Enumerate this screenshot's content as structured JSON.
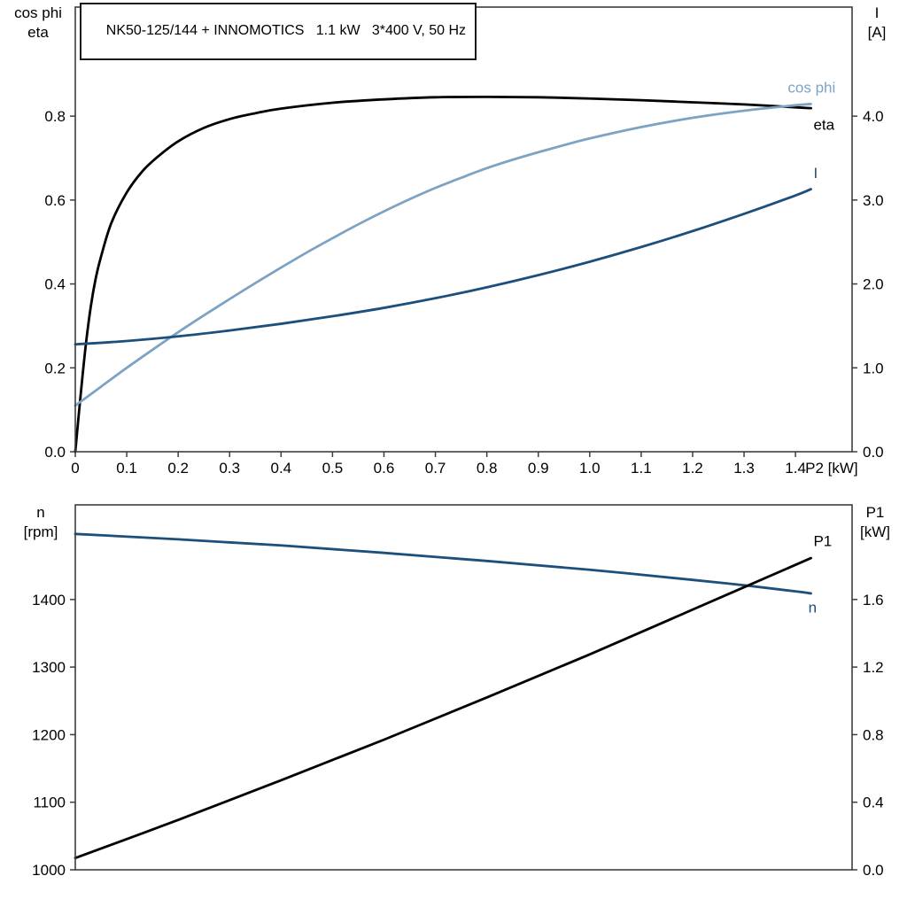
{
  "colors": {
    "eta_curve": "#000000",
    "cos_phi_curve": "#7da3c4",
    "current_curve": "#1c4f7c",
    "speed_curve": "#1c4f7c",
    "p1_curve": "#000000",
    "frame": "#3d3d3d",
    "text": "#000000",
    "background": "#ffffff"
  },
  "chart_data": [
    {
      "id": "top",
      "type": "line",
      "title": "NK50-125/144 + INNOMOTICS   1.1 kW   3*400 V, 50 Hz",
      "grid": false,
      "legend_position": "curve-end-labels",
      "x_axis": {
        "unit_label": "P2 [kW]",
        "range": [
          0,
          1.51
        ],
        "ticks": [
          0,
          0.1,
          0.2,
          0.3,
          0.4,
          0.5,
          0.6,
          0.7,
          0.8,
          0.9,
          1.0,
          1.1,
          1.2,
          1.3,
          1.4
        ],
        "tick_labels": [
          "0",
          "0.1",
          "0.2",
          "0.3",
          "0.4",
          "0.5",
          "0.6",
          "0.7",
          "0.8",
          "0.9",
          "1.0",
          "1.1",
          "1.2",
          "1.3",
          "1.4"
        ]
      },
      "left_axis": {
        "label_lines": [
          "cos phi",
          "eta"
        ],
        "range": [
          0,
          1.06
        ],
        "ticks": [
          0,
          0.2,
          0.4,
          0.6,
          0.8
        ],
        "tick_labels": [
          "0.0",
          "0.2",
          "0.4",
          "0.6",
          "0.8"
        ]
      },
      "right_axis": {
        "label_lines": [
          "I",
          "[A]"
        ],
        "range": [
          0,
          5.3
        ],
        "ticks": [
          0,
          1,
          2,
          3,
          4
        ],
        "tick_labels": [
          "0.0",
          "1.0",
          "2.0",
          "3.0",
          "4.0"
        ]
      },
      "series": [
        {
          "key": "eta",
          "name": "eta",
          "axis": "left",
          "color_key": "eta_curve",
          "label": "eta",
          "label_pos": [
            1.435,
            0.768
          ],
          "points": [
            [
              0,
              0
            ],
            [
              0.01,
              0.13
            ],
            [
              0.02,
              0.25
            ],
            [
              0.03,
              0.345
            ],
            [
              0.04,
              0.415
            ],
            [
              0.05,
              0.465
            ],
            [
              0.07,
              0.545
            ],
            [
              0.1,
              0.618
            ],
            [
              0.13,
              0.668
            ],
            [
              0.16,
              0.703
            ],
            [
              0.2,
              0.74
            ],
            [
              0.25,
              0.772
            ],
            [
              0.3,
              0.793
            ],
            [
              0.35,
              0.807
            ],
            [
              0.4,
              0.818
            ],
            [
              0.5,
              0.832
            ],
            [
              0.6,
              0.84
            ],
            [
              0.7,
              0.845
            ],
            [
              0.8,
              0.846
            ],
            [
              0.9,
              0.845
            ],
            [
              1.0,
              0.842
            ],
            [
              1.1,
              0.838
            ],
            [
              1.2,
              0.833
            ],
            [
              1.3,
              0.828
            ],
            [
              1.4,
              0.821
            ],
            [
              1.43,
              0.819
            ]
          ]
        },
        {
          "key": "cos-phi",
          "name": "cos phi",
          "axis": "left",
          "color_key": "cos_phi_curve",
          "label": "cos phi",
          "label_pos": [
            1.385,
            0.856
          ],
          "points": [
            [
              0,
              0.11
            ],
            [
              0.05,
              0.155
            ],
            [
              0.1,
              0.2
            ],
            [
              0.15,
              0.243
            ],
            [
              0.2,
              0.285
            ],
            [
              0.25,
              0.325
            ],
            [
              0.3,
              0.364
            ],
            [
              0.35,
              0.402
            ],
            [
              0.4,
              0.439
            ],
            [
              0.45,
              0.475
            ],
            [
              0.5,
              0.509
            ],
            [
              0.55,
              0.542
            ],
            [
              0.6,
              0.573
            ],
            [
              0.65,
              0.602
            ],
            [
              0.7,
              0.629
            ],
            [
              0.75,
              0.653
            ],
            [
              0.8,
              0.676
            ],
            [
              0.85,
              0.696
            ],
            [
              0.9,
              0.714
            ],
            [
              0.95,
              0.731
            ],
            [
              1.0,
              0.747
            ],
            [
              1.1,
              0.774
            ],
            [
              1.2,
              0.796
            ],
            [
              1.3,
              0.813
            ],
            [
              1.4,
              0.826
            ],
            [
              1.43,
              0.829
            ]
          ]
        },
        {
          "key": "current",
          "name": "I",
          "axis": "right",
          "color_key": "current_curve",
          "label": "I",
          "label_pos": [
            1.435,
            3.26
          ],
          "points": [
            [
              0,
              1.28
            ],
            [
              0.1,
              1.32
            ],
            [
              0.2,
              1.375
            ],
            [
              0.3,
              1.445
            ],
            [
              0.4,
              1.525
            ],
            [
              0.5,
              1.615
            ],
            [
              0.6,
              1.715
            ],
            [
              0.7,
              1.83
            ],
            [
              0.8,
              1.96
            ],
            [
              0.9,
              2.105
            ],
            [
              1.0,
              2.265
            ],
            [
              1.1,
              2.44
            ],
            [
              1.2,
              2.63
            ],
            [
              1.3,
              2.835
            ],
            [
              1.4,
              3.055
            ],
            [
              1.43,
              3.13
            ]
          ]
        }
      ]
    },
    {
      "id": "bottom",
      "type": "line",
      "title": "",
      "grid": false,
      "legend_position": "curve-end-labels",
      "x_axis": {
        "unit_label": "",
        "range": [
          0,
          1.51
        ],
        "ticks": [],
        "tick_labels": []
      },
      "left_axis": {
        "label_lines": [
          "n",
          "[rpm]"
        ],
        "range": [
          1000,
          1540
        ],
        "ticks": [
          1000,
          1100,
          1200,
          1300,
          1400
        ],
        "tick_labels": [
          "1000",
          "1100",
          "1200",
          "1300",
          "1400"
        ]
      },
      "right_axis": {
        "label_lines": [
          "P1",
          "[kW]"
        ],
        "range": [
          0,
          2.16
        ],
        "ticks": [
          0,
          0.4,
          0.8,
          1.2,
          1.6
        ],
        "tick_labels": [
          "0.0",
          "0.4",
          "0.8",
          "1.2",
          "1.6"
        ]
      },
      "series": [
        {
          "key": "speed",
          "name": "n",
          "axis": "left",
          "color_key": "speed_curve",
          "label": "n",
          "label_pos": [
            1.425,
            1381
          ],
          "points": [
            [
              0,
              1497
            ],
            [
              0.2,
              1489
            ],
            [
              0.4,
              1480
            ],
            [
              0.6,
              1469
            ],
            [
              0.8,
              1457
            ],
            [
              1.0,
              1444
            ],
            [
              1.2,
              1429
            ],
            [
              1.3,
              1421
            ],
            [
              1.4,
              1412
            ],
            [
              1.43,
              1409
            ]
          ]
        },
        {
          "key": "p1",
          "name": "P1",
          "axis": "right",
          "color_key": "p1_curve",
          "label": "P1",
          "label_pos": [
            1.435,
            1.915
          ],
          "points": [
            [
              0,
              0.07
            ],
            [
              0.2,
              0.295
            ],
            [
              0.4,
              0.53
            ],
            [
              0.6,
              0.77
            ],
            [
              0.8,
              1.02
            ],
            [
              1.0,
              1.275
            ],
            [
              1.2,
              1.54
            ],
            [
              1.4,
              1.805
            ],
            [
              1.43,
              1.845
            ]
          ]
        }
      ]
    }
  ]
}
